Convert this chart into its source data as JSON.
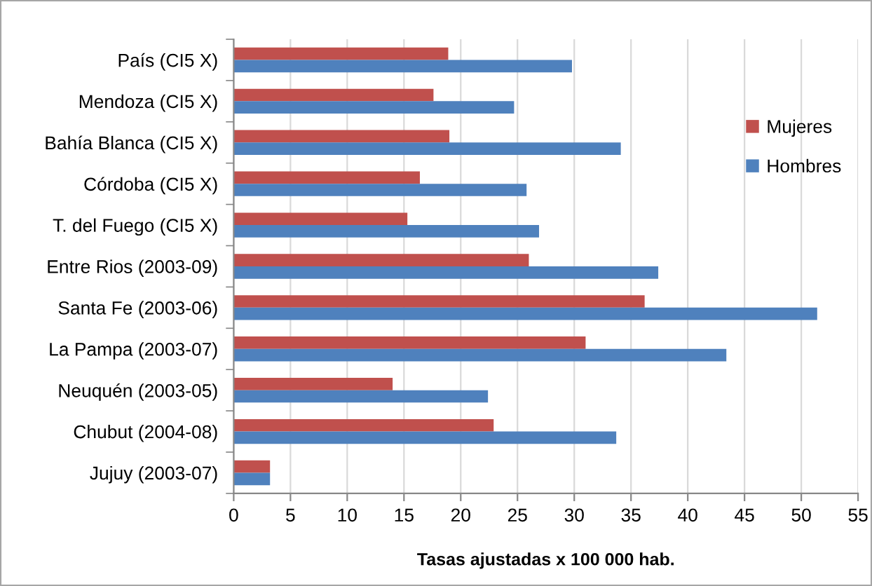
{
  "chart_data": {
    "type": "bar",
    "orientation": "horizontal",
    "categories": [
      "País (CI5 X)",
      "Mendoza (CI5 X)",
      "Bahía Blanca (CI5 X)",
      "Córdoba (CI5 X)",
      "T. del Fuego (CI5 X)",
      "Entre Rios (2003-09)",
      "Santa Fe (2003-06)",
      "La Pampa (2003-07)",
      "Neuquén (2003-05)",
      "Chubut (2004-08)",
      "Jujuy (2003-07)"
    ],
    "series": [
      {
        "name": "Mujeres",
        "color": "#c0504d",
        "values": [
          18.9,
          17.6,
          19.0,
          16.4,
          15.3,
          26.0,
          36.2,
          31.0,
          14.0,
          22.9,
          3.2
        ]
      },
      {
        "name": "Hombres",
        "color": "#4f81bd",
        "values": [
          29.8,
          24.7,
          34.1,
          25.8,
          26.9,
          37.4,
          51.4,
          43.4,
          22.4,
          33.7,
          3.2
        ]
      }
    ],
    "xlabel": "Tasas ajustadas x 100 000 hab.",
    "xlim": [
      0,
      55
    ],
    "xticks": [
      0,
      5,
      10,
      15,
      20,
      25,
      30,
      35,
      40,
      45,
      50,
      55
    ],
    "grid": "x",
    "legend": "top right"
  }
}
